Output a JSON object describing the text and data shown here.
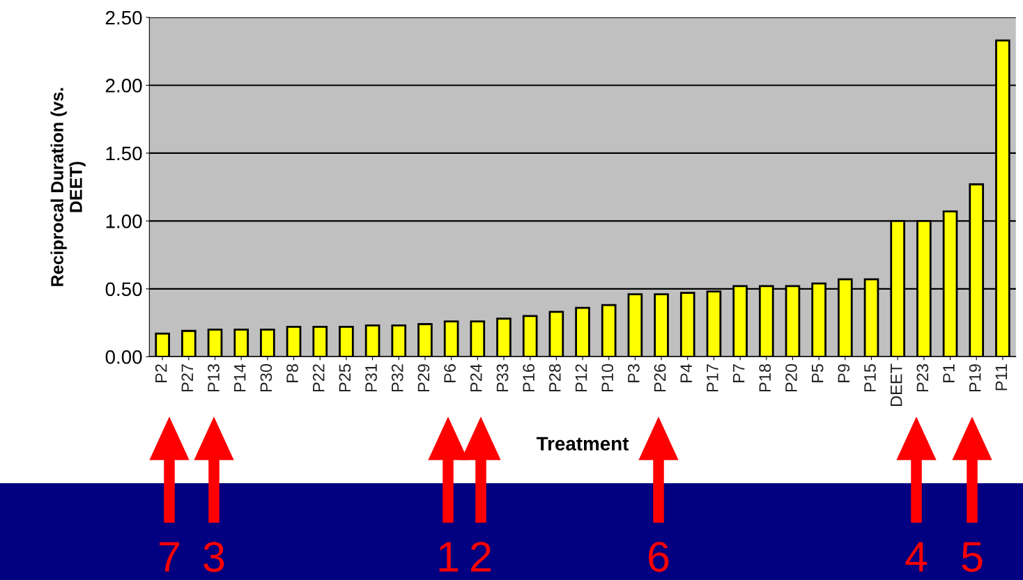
{
  "chart_data": {
    "type": "bar",
    "xlabel": "Treatment",
    "ylabel": "Reciprocal Duration (vs.\nDEET)",
    "categories": [
      "P2",
      "P27",
      "P13",
      "P14",
      "P30",
      "P8",
      "P22",
      "P25",
      "P31",
      "P32",
      "P29",
      "P6",
      "P24",
      "P33",
      "P16",
      "P28",
      "P12",
      "P10",
      "P3",
      "P26",
      "P4",
      "P17",
      "P7",
      "P18",
      "P20",
      "P5",
      "P9",
      "P15",
      "DEET",
      "P23",
      "P1",
      "P19",
      "P11"
    ],
    "values": [
      0.17,
      0.19,
      0.2,
      0.2,
      0.2,
      0.22,
      0.22,
      0.22,
      0.23,
      0.23,
      0.24,
      0.26,
      0.26,
      0.28,
      0.3,
      0.33,
      0.36,
      0.38,
      0.46,
      0.46,
      0.47,
      0.48,
      0.52,
      0.52,
      0.52,
      0.54,
      0.57,
      0.57,
      1.0,
      1.0,
      1.07,
      1.27,
      2.33
    ],
    "color": "#ffff00",
    "ylim": [
      0,
      2.5
    ],
    "yticks": [
      {
        "value": 0,
        "label": "0.00"
      },
      {
        "value": 0.5,
        "label": "0.50"
      },
      {
        "value": 1,
        "label": "1.00"
      },
      {
        "value": 1.5,
        "label": "1.50"
      },
      {
        "value": 2,
        "label": "2.00"
      },
      {
        "value": 2.5,
        "label": "2.50"
      }
    ],
    "grid": "y",
    "annotations": [
      "7",
      "3",
      "1",
      "2",
      "6",
      "4",
      "5"
    ]
  }
}
